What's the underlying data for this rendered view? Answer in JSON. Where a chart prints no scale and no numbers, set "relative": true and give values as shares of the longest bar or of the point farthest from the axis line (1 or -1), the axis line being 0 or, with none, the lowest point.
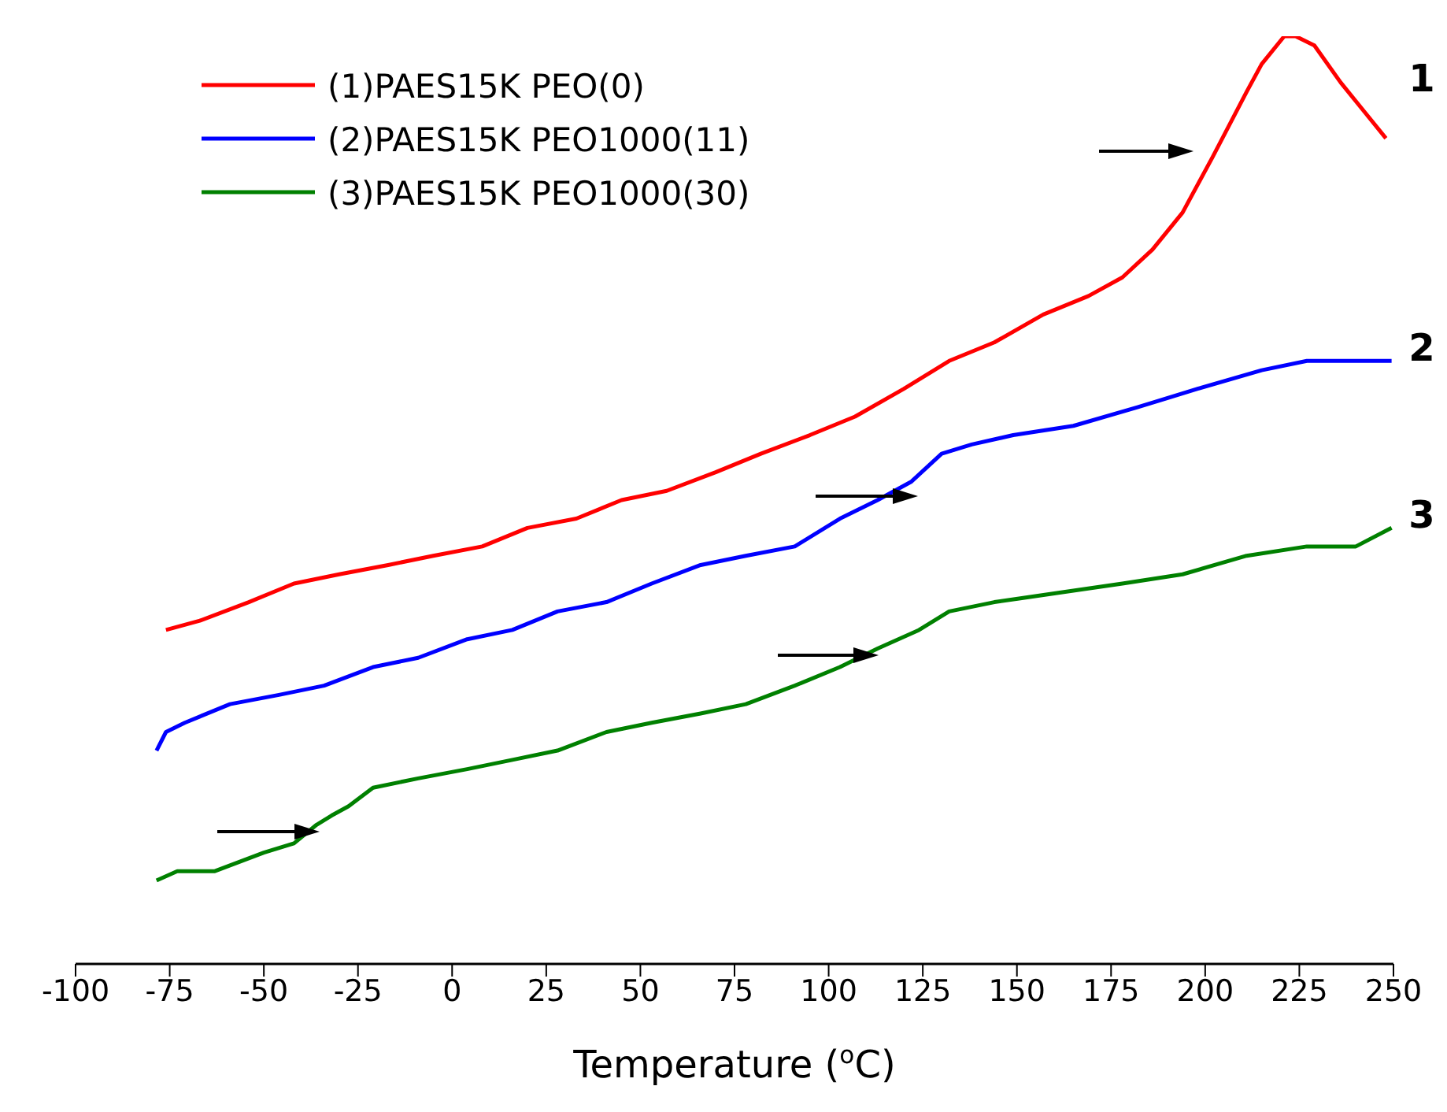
{
  "chart_data": {
    "type": "line",
    "relative": true,
    "xlabel": "Temperature ($^{o}$C)",
    "xlim": [
      -100,
      250
    ],
    "xticks": [
      -100,
      -75,
      -50,
      -25,
      0,
      25,
      50,
      75,
      100,
      125,
      150,
      175,
      200,
      225,
      250
    ],
    "legend": "top left",
    "grid": false,
    "marker": "none",
    "line_style": "solid",
    "annotations": [
      "1",
      "2",
      "3"
    ],
    "series": [
      {
        "name": "(1)PAES15K PEO(0)",
        "color": "#ff0000",
        "x": [
          -76,
          -67,
          -54,
          -42,
          -30,
          -17,
          -5,
          8,
          20,
          33,
          45,
          57,
          70,
          82,
          95,
          107,
          120,
          132,
          144,
          157,
          169,
          178,
          186,
          194,
          202,
          211,
          215,
          221,
          224,
          229,
          236,
          242,
          248
        ],
        "values": [
          0.36,
          0.37,
          0.39,
          0.41,
          0.42,
          0.43,
          0.44,
          0.45,
          0.47,
          0.48,
          0.5,
          0.51,
          0.53,
          0.55,
          0.57,
          0.59,
          0.62,
          0.65,
          0.67,
          0.7,
          0.72,
          0.74,
          0.77,
          0.81,
          0.87,
          0.94,
          0.97,
          1.0,
          1.0,
          0.99,
          0.95,
          0.92,
          0.89
        ]
      },
      {
        "name": "(2)PAES15K PEO1000(11)",
        "color": "#0000ff",
        "x": [
          -78.5,
          -76,
          -71,
          -59,
          -46,
          -34,
          -21,
          -9,
          4,
          16,
          28,
          41,
          53,
          66,
          78,
          91,
          103,
          113,
          122,
          130,
          138,
          149,
          165,
          182,
          198,
          215,
          227,
          240,
          249.5
        ],
        "values": [
          0.23,
          0.25,
          0.26,
          0.28,
          0.29,
          0.3,
          0.32,
          0.33,
          0.35,
          0.36,
          0.38,
          0.39,
          0.41,
          0.43,
          0.44,
          0.45,
          0.48,
          0.5,
          0.52,
          0.55,
          0.56,
          0.57,
          0.58,
          0.6,
          0.62,
          0.64,
          0.65,
          0.65,
          0.65
        ]
      },
      {
        "name": "(3)PAES15K PEO1000(30)",
        "color": "#008000",
        "x": [
          -78.5,
          -73,
          -63,
          -50,
          -42,
          -36,
          -32,
          -27.5,
          -21,
          -9,
          4,
          16,
          28,
          41,
          53,
          66,
          78,
          91,
          103,
          113,
          124,
          132,
          144,
          161,
          178,
          194,
          211,
          227,
          240,
          249.5
        ],
        "values": [
          0.09,
          0.1,
          0.1,
          0.12,
          0.13,
          0.15,
          0.16,
          0.17,
          0.19,
          0.2,
          0.21,
          0.22,
          0.23,
          0.25,
          0.26,
          0.27,
          0.28,
          0.3,
          0.32,
          0.34,
          0.36,
          0.38,
          0.39,
          0.4,
          0.41,
          0.42,
          0.44,
          0.45,
          0.45,
          0.47
        ]
      }
    ]
  }
}
